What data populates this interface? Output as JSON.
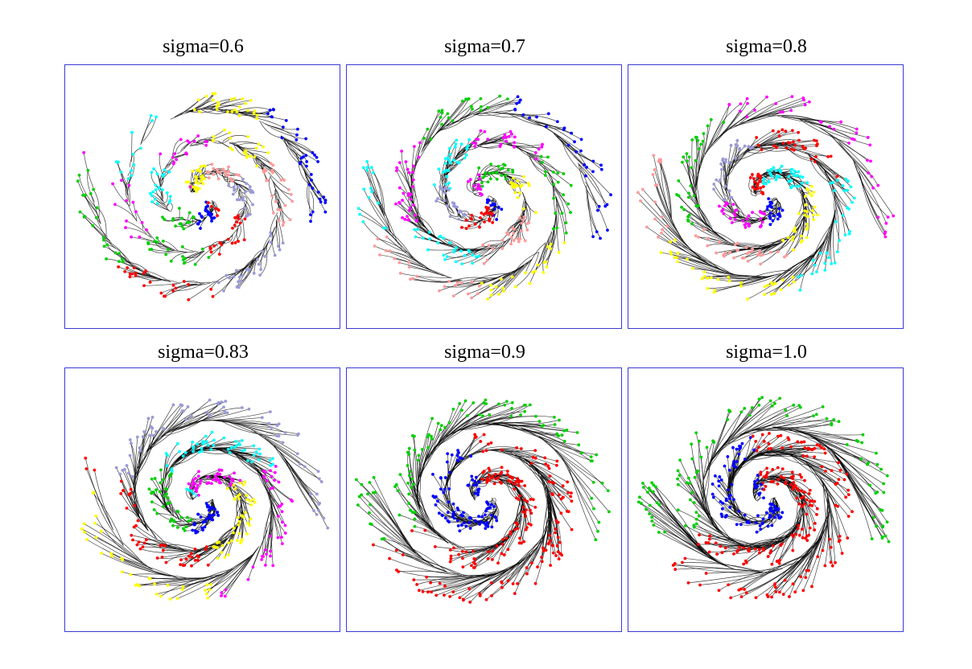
{
  "figure": {
    "rows": 2,
    "cols": 3
  },
  "chart_data": [
    {
      "type": "scatter",
      "title": "sigma=0.6",
      "sigma": 0.6,
      "num_clusters": 14,
      "cluster_colors": [
        "#ff0000",
        "#0000ff",
        "#00d000",
        "#00ffff",
        "#ff00ff",
        "#ffff00",
        "#ff9a9a",
        "#9a9ad8",
        "#ff0000",
        "#00d000",
        "#ff00ff",
        "#00ffff",
        "#ffff00",
        "#0000ff"
      ],
      "line_color": "#000000",
      "frame_color": "#3a3ad6",
      "xlabel": "",
      "ylabel": ""
    },
    {
      "type": "scatter",
      "title": "sigma=0.7",
      "sigma": 0.7,
      "num_clusters": 12,
      "cluster_colors": [
        "#0000ff",
        "#ff0000",
        "#9a9ad8",
        "#00ffff",
        "#ff00ff",
        "#00d000",
        "#ffff00",
        "#ff9a9a",
        "#00ffff",
        "#ff00ff",
        "#00d000",
        "#0000ff"
      ],
      "line_color": "#000000",
      "frame_color": "#3a3ad6",
      "xlabel": "",
      "ylabel": ""
    },
    {
      "type": "scatter",
      "title": "sigma=0.8",
      "sigma": 0.8,
      "num_clusters": 9,
      "cluster_colors": [
        "#0000ff",
        "#ff00ff",
        "#9a9ad8",
        "#ff0000",
        "#00ffff",
        "#ffff00",
        "#ff9a9a",
        "#00d000",
        "#ff00ff"
      ],
      "line_color": "#000000",
      "frame_color": "#3a3ad6",
      "xlabel": "",
      "ylabel": ""
    },
    {
      "type": "scatter",
      "title": "sigma=0.83",
      "sigma": 0.83,
      "num_clusters": 7,
      "cluster_colors": [
        "#0000ff",
        "#00d000",
        "#00ffff",
        "#ff00ff",
        "#ffff00",
        "#ff0000",
        "#9a9ad8"
      ],
      "line_color": "#000000",
      "frame_color": "#3a3ad6",
      "xlabel": "",
      "ylabel": ""
    },
    {
      "type": "scatter",
      "title": "sigma=0.9",
      "sigma": 0.9,
      "num_clusters": 3,
      "cluster_colors": [
        "#0000ff",
        "#ff0000",
        "#00d000"
      ],
      "line_color": "#000000",
      "frame_color": "#3a3ad6",
      "xlabel": "",
      "ylabel": ""
    },
    {
      "type": "scatter",
      "title": "sigma=1.0",
      "sigma": 1.0,
      "num_clusters": 3,
      "cluster_colors": [
        "#0000ff",
        "#ff0000",
        "#00d000"
      ],
      "line_color": "#000000",
      "frame_color": "#3a3ad6",
      "xlabel": "",
      "ylabel": ""
    }
  ]
}
